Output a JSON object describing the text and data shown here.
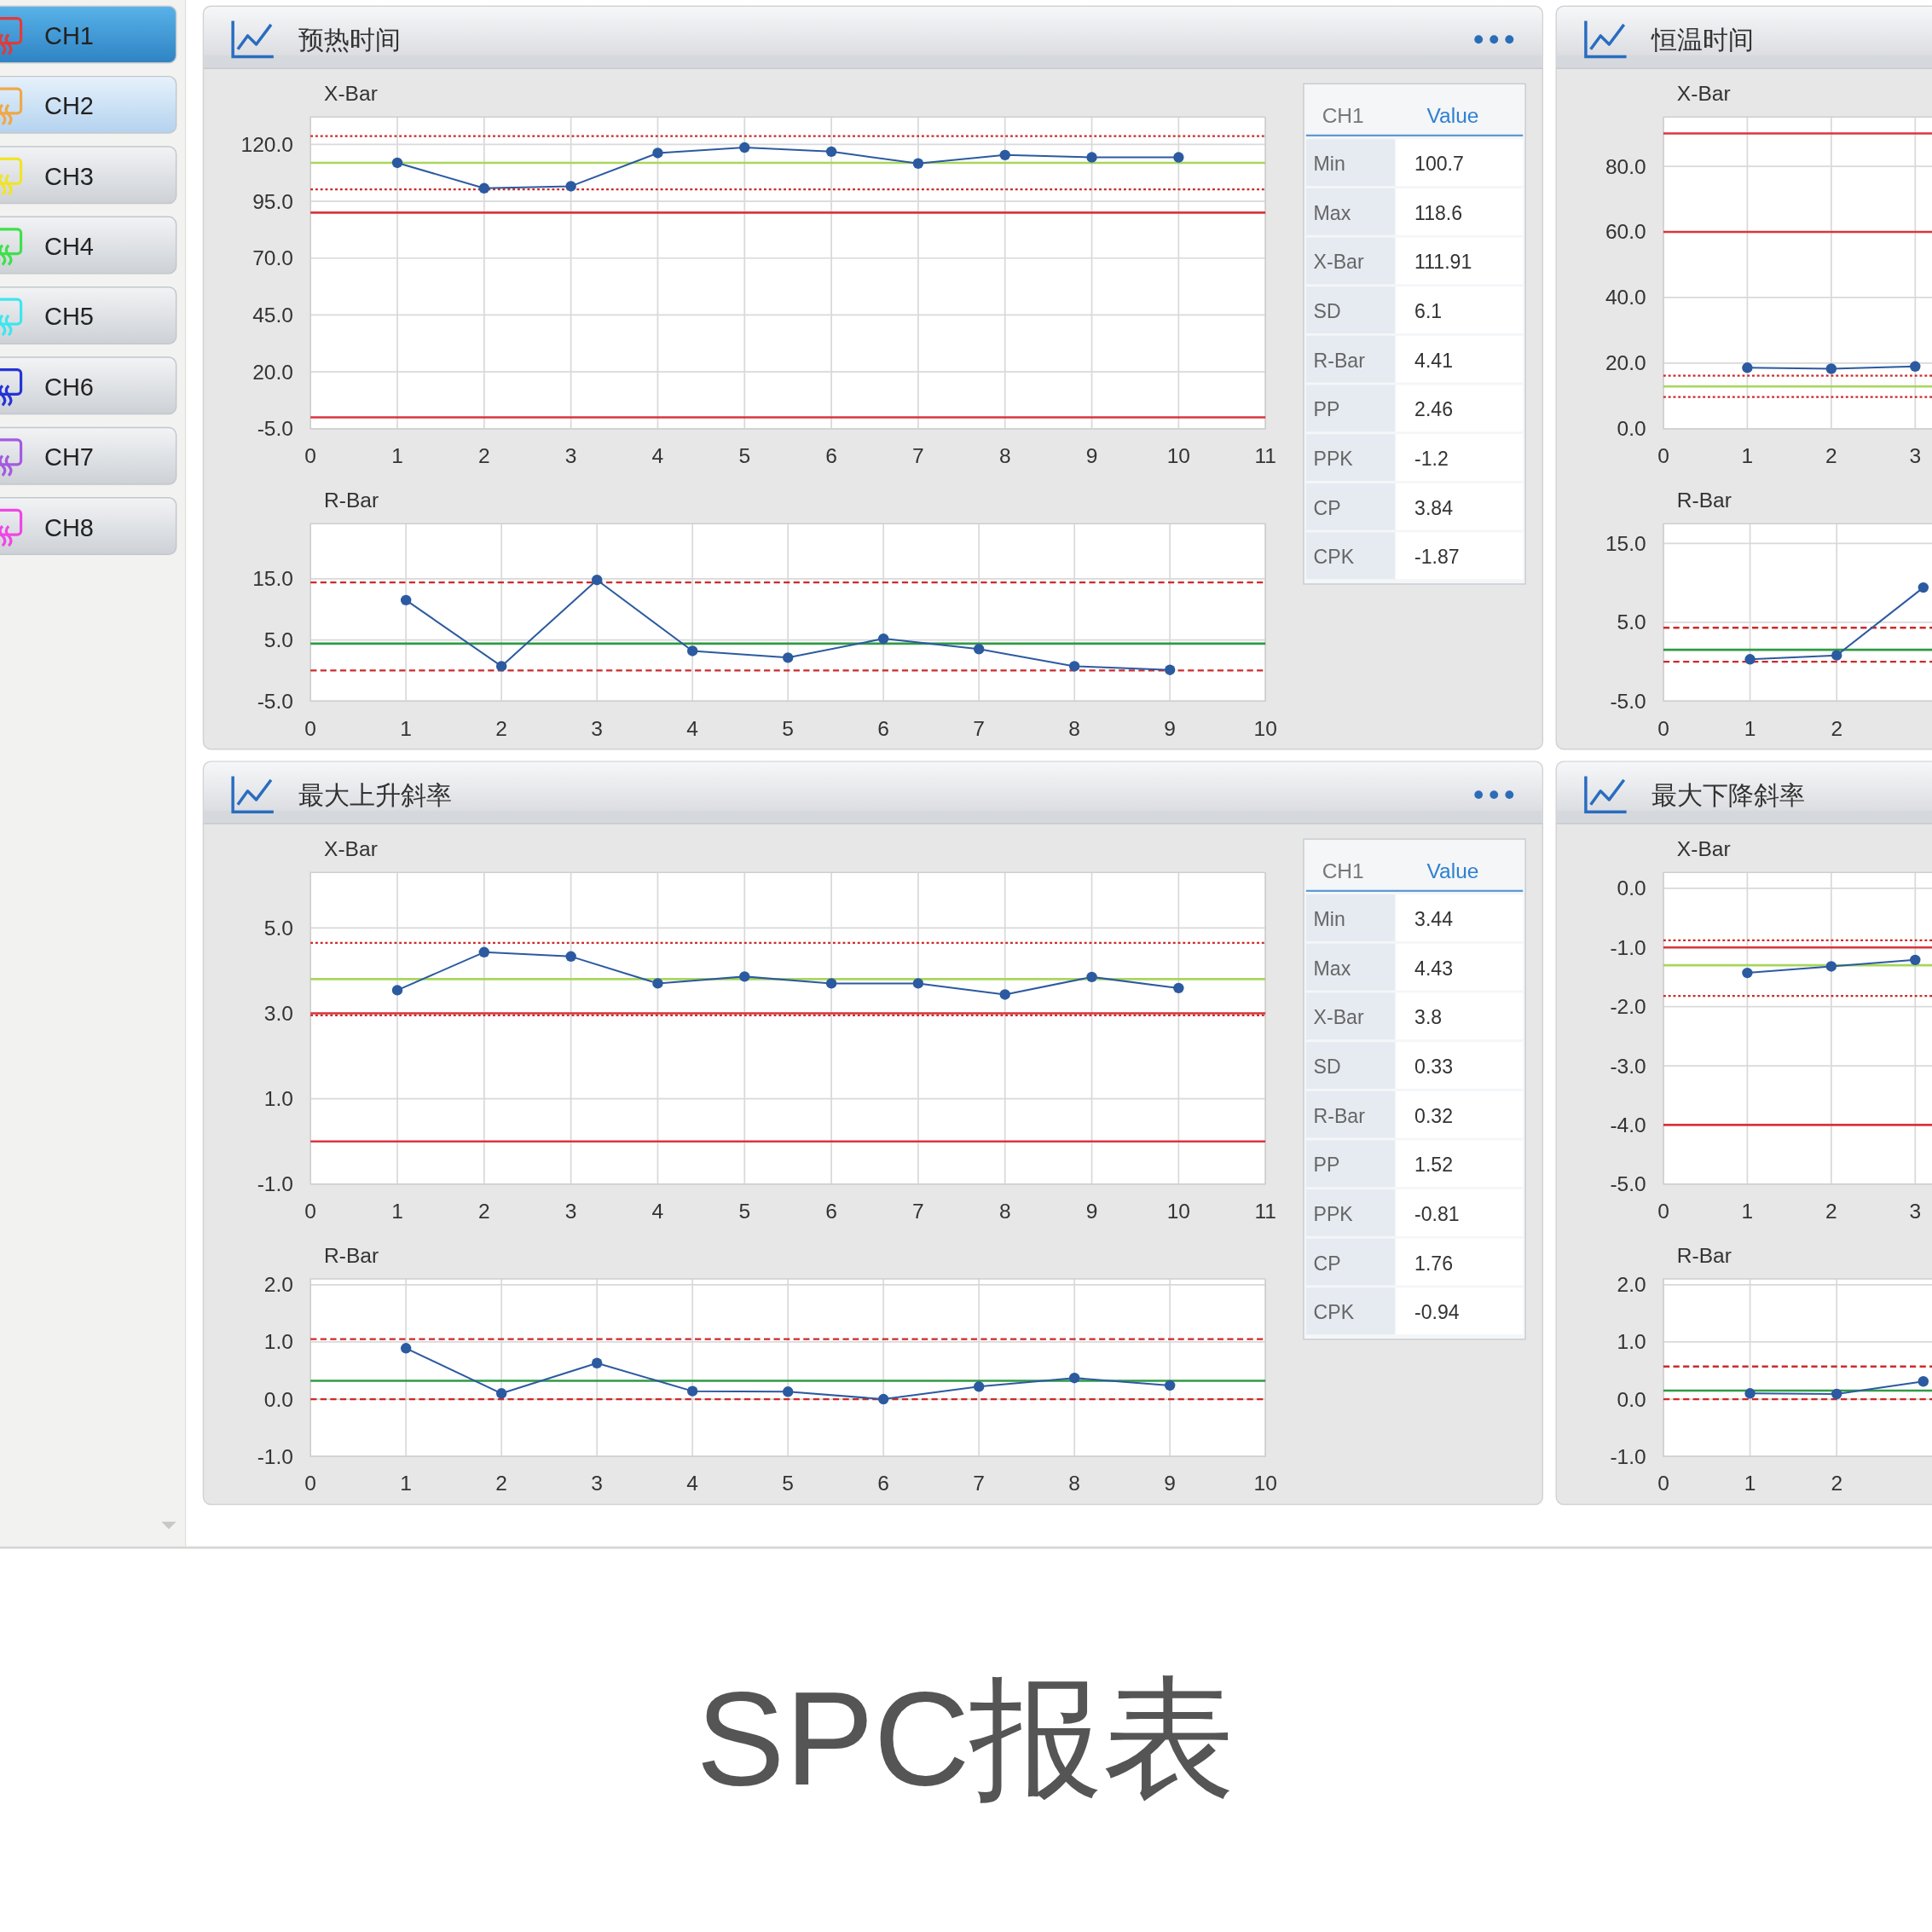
{
  "chart_data": [
    {
      "type": "other",
      "annotations": [
        "CH1",
        "CH2",
        "CH3",
        "CH4",
        "CH5",
        "CH6",
        "CH7",
        "CH8"
      ]
    },
    {
      "type": "line",
      "title": "预热时间",
      "subtitle": "X-Bar",
      "x": [
        1,
        2,
        3,
        4,
        5,
        6,
        7,
        8,
        9,
        10
      ],
      "series": [
        {
          "color": "#2c5aa0",
          "values": [
            111.9,
            100.7,
            101.6,
            116.2,
            118.6,
            116.8,
            111.6,
            115.3,
            114.3,
            114.3
          ]
        }
      ],
      "xlim": [
        0,
        11
      ],
      "xticks": [
        0,
        1,
        2,
        3,
        4,
        5,
        6,
        7,
        8,
        9,
        10,
        11
      ],
      "ylim": [
        -5,
        132
      ],
      "yticks": [
        {
          "value": -5,
          "label": "-5.0"
        },
        {
          "value": 20,
          "label": "20.0"
        },
        {
          "value": 45,
          "label": "45.0"
        },
        {
          "value": 70,
          "label": "70.0"
        },
        {
          "value": 95,
          "label": "95.0"
        },
        {
          "value": 120,
          "label": "120.0"
        }
      ],
      "ref_lines": [
        {
          "axis": "y",
          "value": 123.6,
          "color": "#cc2b2b",
          "line_style": "dotted"
        },
        {
          "axis": "y",
          "value": 111.9,
          "color": "#a8d65c",
          "line_style": "solid"
        },
        {
          "axis": "y",
          "value": 100.2,
          "color": "#cc2b2b",
          "line_style": "dotted"
        },
        {
          "axis": "y",
          "value": 90,
          "color": "#d9363e",
          "line_style": "solid"
        },
        {
          "axis": "y",
          "value": 0,
          "color": "#d9363e",
          "line_style": "solid"
        }
      ],
      "grid": true,
      "marker": "circle",
      "line_style": "solid"
    },
    {
      "type": "line",
      "subtitle": "R-Bar",
      "x": [
        1,
        2,
        3,
        4,
        5,
        6,
        7,
        8,
        9
      ],
      "series": [
        {
          "color": "#2c5aa0",
          "values": [
            11.5,
            0.7,
            14.8,
            3.2,
            2.1,
            5.2,
            3.5,
            0.7,
            0.1
          ]
        }
      ],
      "xlim": [
        0,
        10
      ],
      "xticks": [
        0,
        1,
        2,
        3,
        4,
        5,
        6,
        7,
        8,
        9,
        10
      ],
      "ylim": [
        -5,
        24
      ],
      "yticks": [
        {
          "value": -5,
          "label": "-5.0"
        },
        {
          "value": 5,
          "label": "5.0"
        },
        {
          "value": 15,
          "label": "15.0"
        }
      ],
      "ref_lines": [
        {
          "axis": "y",
          "value": 14.4,
          "color": "#cc2b2b",
          "line_style": "dashed"
        },
        {
          "axis": "y",
          "value": 4.4,
          "color": "#2f9a45",
          "line_style": "solid"
        },
        {
          "axis": "y",
          "value": 0,
          "color": "#cc2b2b",
          "line_style": "dashed"
        }
      ],
      "grid": true,
      "marker": "circle",
      "line_style": "solid"
    },
    {
      "type": "other",
      "xlabel": "CH1",
      "ylabel": "Value",
      "categories": [
        "Min",
        "Max",
        "X-Bar",
        "SD",
        "R-Bar",
        "PP",
        "PPK",
        "CP",
        "CPK"
      ],
      "values": [
        100.7,
        118.6,
        111.91,
        6.1,
        4.41,
        2.46,
        -1.2,
        3.84,
        -1.87
      ],
      "data_labels": true
    },
    {
      "type": "line",
      "title": "恒温时间",
      "subtitle": "X-Bar",
      "x": [
        1,
        2,
        3
      ],
      "series": [
        {
          "color": "#2c5aa0",
          "values": [
            18.6,
            18.3,
            19.0
          ]
        }
      ],
      "xlim": [
        0,
        3.2
      ],
      "xticks": [
        0,
        1,
        2,
        3
      ],
      "ylim": [
        0,
        95
      ],
      "yticks": [
        {
          "value": 0,
          "label": "0.0"
        },
        {
          "value": 20,
          "label": "20.0"
        },
        {
          "value": 40,
          "label": "40.0"
        },
        {
          "value": 60,
          "label": "60.0"
        },
        {
          "value": 80,
          "label": "80.0"
        }
      ],
      "ref_lines": [
        {
          "axis": "y",
          "value": 90,
          "color": "#d9363e",
          "line_style": "solid"
        },
        {
          "axis": "y",
          "value": 60,
          "color": "#d9363e",
          "line_style": "solid"
        },
        {
          "axis": "y",
          "value": 16.2,
          "color": "#cc2b2b",
          "line_style": "dotted"
        },
        {
          "axis": "y",
          "value": 12.9,
          "color": "#a8d65c",
          "line_style": "solid"
        },
        {
          "axis": "y",
          "value": 9.7,
          "color": "#cc2b2b",
          "line_style": "dotted"
        }
      ],
      "grid": true,
      "marker": "circle",
      "line_style": "solid"
    },
    {
      "type": "line",
      "subtitle": "R-Bar",
      "x": [
        1,
        2,
        3
      ],
      "series": [
        {
          "color": "#2c5aa0",
          "values": [
            0.3,
            0.8,
            9.4
          ]
        }
      ],
      "xlim": [
        0,
        3.1
      ],
      "xticks": [
        0,
        1,
        2
      ],
      "ylim": [
        -5,
        17.5
      ],
      "yticks": [
        {
          "value": -5,
          "label": "-5.0"
        },
        {
          "value": 5,
          "label": "5.0"
        },
        {
          "value": 15,
          "label": "15.0"
        }
      ],
      "ref_lines": [
        {
          "axis": "y",
          "value": 4.3,
          "color": "#cc2b2b",
          "line_style": "dashed"
        },
        {
          "axis": "y",
          "value": 1.5,
          "color": "#2f9a45",
          "line_style": "solid"
        },
        {
          "axis": "y",
          "value": 0,
          "color": "#cc2b2b",
          "line_style": "dashed"
        }
      ],
      "grid": true,
      "marker": "circle",
      "line_style": "solid"
    },
    {
      "type": "line",
      "title": "最大上升斜率",
      "subtitle": "X-Bar",
      "x": [
        1,
        2,
        3,
        4,
        5,
        6,
        7,
        8,
        9,
        10
      ],
      "series": [
        {
          "color": "#2c5aa0",
          "values": [
            3.54,
            4.43,
            4.33,
            3.7,
            3.86,
            3.7,
            3.7,
            3.44,
            3.85,
            3.59
          ]
        }
      ],
      "xlim": [
        0,
        11
      ],
      "xticks": [
        0,
        1,
        2,
        3,
        4,
        5,
        6,
        7,
        8,
        9,
        10,
        11
      ],
      "ylim": [
        -1,
        6.3
      ],
      "yticks": [
        {
          "value": -1,
          "label": "-1.0"
        },
        {
          "value": 1,
          "label": "1.0"
        },
        {
          "value": 3,
          "label": "3.0"
        },
        {
          "value": 5,
          "label": "5.0"
        }
      ],
      "ref_lines": [
        {
          "axis": "y",
          "value": 4.65,
          "color": "#cc2b2b",
          "line_style": "dotted"
        },
        {
          "axis": "y",
          "value": 3.8,
          "color": "#a8d65c",
          "line_style": "solid"
        },
        {
          "axis": "y",
          "value": 3.0,
          "color": "#d9363e",
          "line_style": "solid"
        },
        {
          "axis": "y",
          "value": 2.95,
          "color": "#cc2b2b",
          "line_style": "dotted"
        },
        {
          "axis": "y",
          "value": 0,
          "color": "#d9363e",
          "line_style": "solid"
        }
      ],
      "grid": true,
      "marker": "circle",
      "line_style": "solid"
    },
    {
      "type": "line",
      "subtitle": "R-Bar",
      "x": [
        1,
        2,
        3,
        4,
        5,
        6,
        7,
        8,
        9
      ],
      "series": [
        {
          "color": "#2c5aa0",
          "values": [
            0.89,
            0.1,
            0.63,
            0.14,
            0.13,
            0.0,
            0.22,
            0.37,
            0.24
          ]
        }
      ],
      "xlim": [
        0,
        10
      ],
      "xticks": [
        0,
        1,
        2,
        3,
        4,
        5,
        6,
        7,
        8,
        9,
        10
      ],
      "ylim": [
        -1,
        2.1
      ],
      "yticks": [
        {
          "value": -1,
          "label": "-1.0"
        },
        {
          "value": 0,
          "label": "0.0"
        },
        {
          "value": 1,
          "label": "1.0"
        },
        {
          "value": 2,
          "label": "2.0"
        }
      ],
      "ref_lines": [
        {
          "axis": "y",
          "value": 1.05,
          "color": "#cc2b2b",
          "line_style": "dashed"
        },
        {
          "axis": "y",
          "value": 0.32,
          "color": "#2f9a45",
          "line_style": "solid"
        },
        {
          "axis": "y",
          "value": 0,
          "color": "#cc2b2b",
          "line_style": "dashed"
        }
      ],
      "grid": true,
      "marker": "circle",
      "line_style": "solid"
    },
    {
      "type": "other",
      "xlabel": "CH1",
      "ylabel": "Value",
      "categories": [
        "Min",
        "Max",
        "X-Bar",
        "SD",
        "R-Bar",
        "PP",
        "PPK",
        "CP",
        "CPK"
      ],
      "values": [
        3.44,
        4.43,
        3.8,
        0.33,
        0.32,
        1.52,
        -0.81,
        1.76,
        -0.94
      ],
      "data_labels": true
    },
    {
      "type": "line",
      "title": "最大下降斜率",
      "subtitle": "X-Bar",
      "x": [
        1,
        2,
        3
      ],
      "series": [
        {
          "color": "#2c5aa0",
          "values": [
            -1.43,
            -1.32,
            -1.21
          ]
        }
      ],
      "xlim": [
        0,
        3.2
      ],
      "xticks": [
        0,
        1,
        2,
        3
      ],
      "ylim": [
        -5,
        0.27
      ],
      "yticks": [
        {
          "value": -5,
          "label": "-5.0"
        },
        {
          "value": -4,
          "label": "-4.0"
        },
        {
          "value": -3,
          "label": "-3.0"
        },
        {
          "value": -2,
          "label": "-2.0"
        },
        {
          "value": -1,
          "label": "-1.0"
        },
        {
          "value": 0,
          "label": "0.0"
        }
      ],
      "ref_lines": [
        {
          "axis": "y",
          "value": -0.88,
          "color": "#cc2b2b",
          "line_style": "dotted"
        },
        {
          "axis": "y",
          "value": -1.0,
          "color": "#d9363e",
          "line_style": "solid"
        },
        {
          "axis": "y",
          "value": -1.3,
          "color": "#a8d65c",
          "line_style": "solid"
        },
        {
          "axis": "y",
          "value": -1.82,
          "color": "#cc2b2b",
          "line_style": "dotted"
        },
        {
          "axis": "y",
          "value": -4.0,
          "color": "#d9363e",
          "line_style": "solid"
        }
      ],
      "grid": true,
      "marker": "circle",
      "line_style": "solid"
    },
    {
      "type": "line",
      "subtitle": "R-Bar",
      "x": [
        1,
        2,
        3
      ],
      "series": [
        {
          "color": "#2c5aa0",
          "values": [
            0.1,
            0.09,
            0.31
          ]
        }
      ],
      "xlim": [
        0,
        3.1
      ],
      "xticks": [
        0,
        1,
        2
      ],
      "ylim": [
        -1,
        2.1
      ],
      "yticks": [
        {
          "value": -1,
          "label": "-1.0"
        },
        {
          "value": 0,
          "label": "0.0"
        },
        {
          "value": 1,
          "label": "1.0"
        },
        {
          "value": 2,
          "label": "2.0"
        }
      ],
      "ref_lines": [
        {
          "axis": "y",
          "value": 0.57,
          "color": "#cc2b2b",
          "line_style": "dashed"
        },
        {
          "axis": "y",
          "value": 0.15,
          "color": "#2f9a45",
          "line_style": "solid"
        },
        {
          "axis": "y",
          "value": 0,
          "color": "#cc2b2b",
          "line_style": "dashed"
        }
      ],
      "grid": true,
      "marker": "circle",
      "line_style": "solid"
    },
    {
      "type": "other",
      "title": "SPC报表"
    }
  ]
}
